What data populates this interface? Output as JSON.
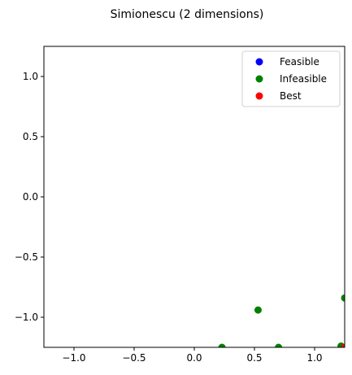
{
  "chart_data": {
    "type": "scatter",
    "title": "Simionescu (2 dimensions)",
    "xlabel": "",
    "ylabel": "",
    "xlim": [
      -1.25,
      1.25
    ],
    "ylim": [
      -1.25,
      1.25
    ],
    "x_ticks": [
      -1.0,
      -0.5,
      0.0,
      0.5,
      1.0
    ],
    "x_tick_labels": [
      "−1.0",
      "−0.5",
      "0.0",
      "0.5",
      "1.0"
    ],
    "y_ticks": [
      1.0,
      0.5,
      0.0,
      -0.5,
      -1.0
    ],
    "y_tick_labels": [
      "1.0",
      "0.5",
      "0.0",
      "−0.5",
      "−1.0"
    ],
    "grid": false,
    "legend_position": "top-right",
    "series": [
      {
        "name": "Feasible",
        "color": "#0000ff",
        "points": []
      },
      {
        "name": "Infeasible",
        "color": "#008000",
        "points": [
          [
            0.23,
            -1.25
          ],
          [
            0.53,
            -0.94
          ],
          [
            0.7,
            -1.25
          ],
          [
            1.22,
            -1.24
          ],
          [
            1.25,
            -0.84
          ]
        ]
      },
      {
        "name": "Best",
        "color": "#ff0000",
        "points": [
          [
            1.25,
            -1.25
          ]
        ]
      }
    ]
  }
}
